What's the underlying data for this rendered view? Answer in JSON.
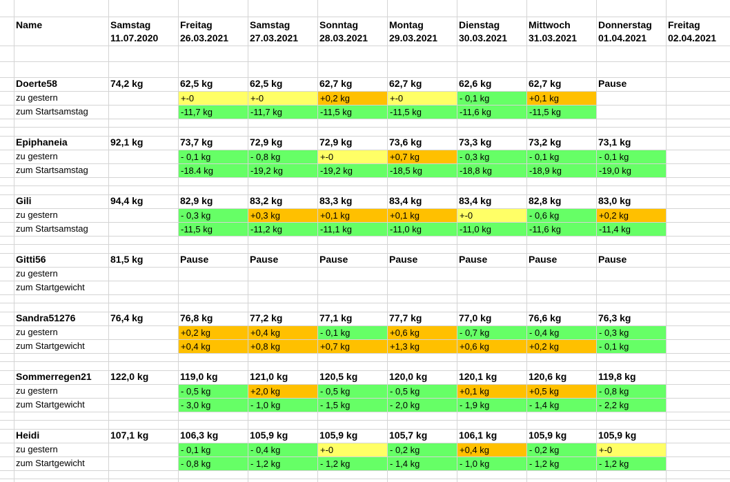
{
  "header": {
    "name_label": "Name",
    "columns": [
      {
        "day": "Samstag",
        "date": "11.07.2020"
      },
      {
        "day": "Freitag",
        "date": "26.03.2021"
      },
      {
        "day": "Samstag",
        "date": "27.03.2021"
      },
      {
        "day": "Sonntag",
        "date": "28.03.2021"
      },
      {
        "day": "Montag",
        "date": "29.03.2021"
      },
      {
        "day": "Dienstag",
        "date": "30.03.2021"
      },
      {
        "day": "Mittwoch",
        "date": "31.03.2021"
      },
      {
        "day": "Donnerstag",
        "date": "01.04.2021"
      },
      {
        "day": "Freitag",
        "date": "02.04.2021"
      }
    ]
  },
  "people": [
    {
      "name": "Doerte58",
      "start": "74,2 kg",
      "weights": [
        "62,5 kg",
        "62,5 kg",
        "62,7 kg",
        "62,7 kg",
        "62,6 kg",
        "62,7 kg",
        "Pause"
      ],
      "rows": [
        {
          "label": "zu gestern",
          "cells": [
            "+-0",
            "+-0",
            "+0,2 kg",
            "+-0",
            "- 0,1 kg",
            "+0,1 kg"
          ],
          "fills": [
            "#ffff66",
            "#ffff66",
            "#ffc000",
            "#ffff66",
            "#66ff66",
            "#ffc000"
          ]
        },
        {
          "label": "zum Startsamstag",
          "cells": [
            "-11,7 kg",
            "-11,7 kg",
            "-11,5 kg",
            "-11,5 kg",
            "-11,6 kg",
            "-11,5 kg"
          ],
          "fills": [
            "#66ff66",
            "#66ff66",
            "#66ff66",
            "#66ff66",
            "#66ff66",
            "#66ff66"
          ]
        }
      ]
    },
    {
      "name": "Epiphaneia",
      "start": "92,1 kg",
      "weights": [
        "73,7 kg",
        "72,9 kg",
        "72,9 kg",
        "73,6 kg",
        "73,3 kg",
        "73,2 kg",
        "73,1 kg"
      ],
      "rows": [
        {
          "label": "zu gestern",
          "cells": [
            "- 0,1 kg",
            "- 0,8 kg",
            "+-0",
            "+0,7 kg",
            "- 0,3 kg",
            "- 0,1 kg",
            "- 0,1 kg"
          ],
          "fills": [
            "#66ff66",
            "#66ff66",
            "#ffff66",
            "#ffc000",
            "#66ff66",
            "#66ff66",
            "#66ff66"
          ]
        },
        {
          "label": "zum Startsamstag",
          "cells": [
            "-18.4 kg",
            "-19,2 kg",
            "-19,2 kg",
            "-18,5 kg",
            "-18,8 kg",
            "-18,9 kg",
            "-19,0 kg"
          ],
          "fills": [
            "#66ff66",
            "#66ff66",
            "#66ff66",
            "#66ff66",
            "#66ff66",
            "#66ff66",
            "#66ff66"
          ]
        }
      ]
    },
    {
      "name": "Gili",
      "start": "94,4 kg",
      "weights": [
        "82,9 kg",
        "83,2 kg",
        "83,3 kg",
        "83,4 kg",
        "83,4 kg",
        "82,8 kg",
        "83,0 kg"
      ],
      "rows": [
        {
          "label": "zu gestern",
          "cells": [
            "- 0,3 kg",
            "+0,3 kg",
            "+0,1 kg",
            "+0,1 kg",
            "+-0",
            "- 0,6 kg",
            "+0,2 kg"
          ],
          "fills": [
            "#66ff66",
            "#ffc000",
            "#ffc000",
            "#ffc000",
            "#ffff66",
            "#66ff66",
            "#ffc000"
          ]
        },
        {
          "label": "zum Startsamstag",
          "cells": [
            "-11,5 kg",
            "-11,2 kg",
            "-11,1 kg",
            "-11,0 kg",
            "-11,0 kg",
            "-11,6 kg",
            "-11,4 kg"
          ],
          "fills": [
            "#66ff66",
            "#66ff66",
            "#66ff66",
            "#66ff66",
            "#66ff66",
            "#66ff66",
            "#66ff66"
          ]
        }
      ]
    },
    {
      "name": "Gitti56",
      "start": "81,5 kg",
      "weights": [
        "Pause",
        "Pause",
        "Pause",
        "Pause",
        "Pause",
        "Pause",
        "Pause"
      ],
      "rows": [
        {
          "label": "zu gestern",
          "cells": [],
          "fills": []
        },
        {
          "label": "zum Startgewicht",
          "cells": [],
          "fills": []
        }
      ]
    },
    {
      "name": "Sandra51276",
      "start": "76,4 kg",
      "weights": [
        "76,8 kg",
        "77,2 kg",
        "77,1 kg",
        "77,7 kg",
        "77,0 kg",
        "76,6 kg",
        "76,3 kg"
      ],
      "rows": [
        {
          "label": "zu gestern",
          "cells": [
            "+0,2 kg",
            "+0,4 kg",
            "- 0,1 kg",
            "+0,6 kg",
            "- 0,7 kg",
            "- 0,4 kg",
            "- 0,3 kg"
          ],
          "fills": [
            "#ffc000",
            "#ffc000",
            "#66ff66",
            "#ffc000",
            "#66ff66",
            "#66ff66",
            "#66ff66"
          ]
        },
        {
          "label": "zum Startgewicht",
          "cells": [
            "+0,4 kg",
            "+0,8 kg",
            "+0,7 kg",
            "+1,3 kg",
            "+0,6 kg",
            "+0,2 kg",
            "- 0,1 kg"
          ],
          "fills": [
            "#ffc000",
            "#ffc000",
            "#ffc000",
            "#ffc000",
            "#ffc000",
            "#ffc000",
            "#66ff66"
          ]
        }
      ]
    },
    {
      "name": "Sommerregen21",
      "start": "122,0 kg",
      "weights": [
        "119,0 kg",
        "121,0 kg",
        "120,5 kg",
        "120,0 kg",
        "120,1 kg",
        "120,6 kg",
        "119,8 kg"
      ],
      "rows": [
        {
          "label": "zu gestern",
          "cells": [
            "- 0,5 kg",
            "+2,0 kg",
            "- 0,5 kg",
            "- 0,5 kg",
            "+0,1 kg",
            "+0,5 kg",
            "- 0,8 kg"
          ],
          "fills": [
            "#66ff66",
            "#ffc000",
            "#66ff66",
            "#66ff66",
            "#ffc000",
            "#ffc000",
            "#66ff66"
          ]
        },
        {
          "label": "zum Startgewicht",
          "cells": [
            "- 3,0 kg",
            "- 1,0 kg",
            "- 1,5 kg",
            "- 2,0 kg",
            "- 1,9 kg",
            "- 1,4 kg",
            "- 2,2 kg"
          ],
          "fills": [
            "#66ff66",
            "#66ff66",
            "#66ff66",
            "#66ff66",
            "#66ff66",
            "#66ff66",
            "#66ff66"
          ]
        }
      ]
    },
    {
      "name": "Heidi",
      "start": "107,1 kg",
      "weights": [
        "106,3 kg",
        "105,9 kg",
        "105,9 kg",
        "105,7 kg",
        "106,1 kg",
        "105,9 kg",
        "105,9 kg"
      ],
      "rows": [
        {
          "label": "zu gestern",
          "cells": [
            "- 0,1 kg",
            "- 0,4 kg",
            "+-0",
            "- 0,2 kg",
            "+0,4 kg",
            "- 0,2 kg",
            "+-0"
          ],
          "fills": [
            "#66ff66",
            "#66ff66",
            "#ffff66",
            "#66ff66",
            "#ffc000",
            "#66ff66",
            "#ffff66"
          ]
        },
        {
          "label": "zum Startgewicht",
          "cells": [
            "- 0,8 kg",
            "- 1,2 kg",
            "- 1,2 kg",
            "- 1,4 kg",
            "- 1,0 kg",
            "- 1,2 kg",
            "- 1,2 kg"
          ],
          "fills": [
            "#66ff66",
            "#66ff66",
            "#66ff66",
            "#66ff66",
            "#66ff66",
            "#66ff66",
            "#66ff66"
          ]
        }
      ]
    }
  ]
}
